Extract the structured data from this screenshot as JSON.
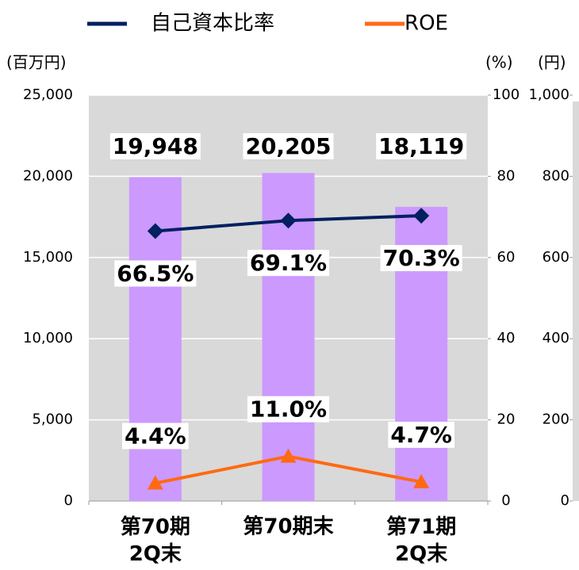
{
  "chart_data": {
    "type": "bar",
    "categories": [
      "第70期\n2Q末",
      "第70期末",
      "第71期\n2Q末"
    ],
    "values": [
      19948,
      20205,
      18119
    ],
    "value_labels": [
      "19,948",
      "20,205",
      "18,119"
    ],
    "color": "#cc99ff",
    "series": [
      {
        "name": "自己資本比率",
        "color": "#002060",
        "axis": "y2",
        "marker": "diamond",
        "values": [
          66.5,
          69.1,
          70.3
        ],
        "value_labels": [
          "66.5%",
          "69.1%",
          "70.3%"
        ]
      },
      {
        "name": "ROE",
        "color": "#ff6a13",
        "axis": "y2",
        "marker": "triangle",
        "values": [
          4.4,
          11.0,
          4.7
        ],
        "value_labels": [
          "4.4%",
          "11.0%",
          "4.7%"
        ]
      }
    ],
    "ylabel": "(百万円)",
    "y2label": "(%)",
    "y3label": "(円)",
    "ylim": [
      0,
      25000
    ],
    "yticks": [
      0,
      {
        "value": 5000,
        "label": "5,000"
      },
      {
        "value": 10000,
        "label": "10,000"
      },
      {
        "value": 15000,
        "label": "15,000"
      },
      {
        "value": 20000,
        "label": "20,000"
      },
      {
        "value": 25000,
        "label": "25,000"
      }
    ],
    "y2lim": [
      0,
      100
    ],
    "y2ticks": [
      0,
      20,
      40,
      60,
      80,
      100
    ],
    "y3lim": [
      0,
      1000
    ],
    "y3ticks": [
      0,
      200,
      400,
      600,
      800,
      {
        "value": 1000,
        "label": "1,000"
      }
    ],
    "grid": true,
    "legend": "top"
  }
}
